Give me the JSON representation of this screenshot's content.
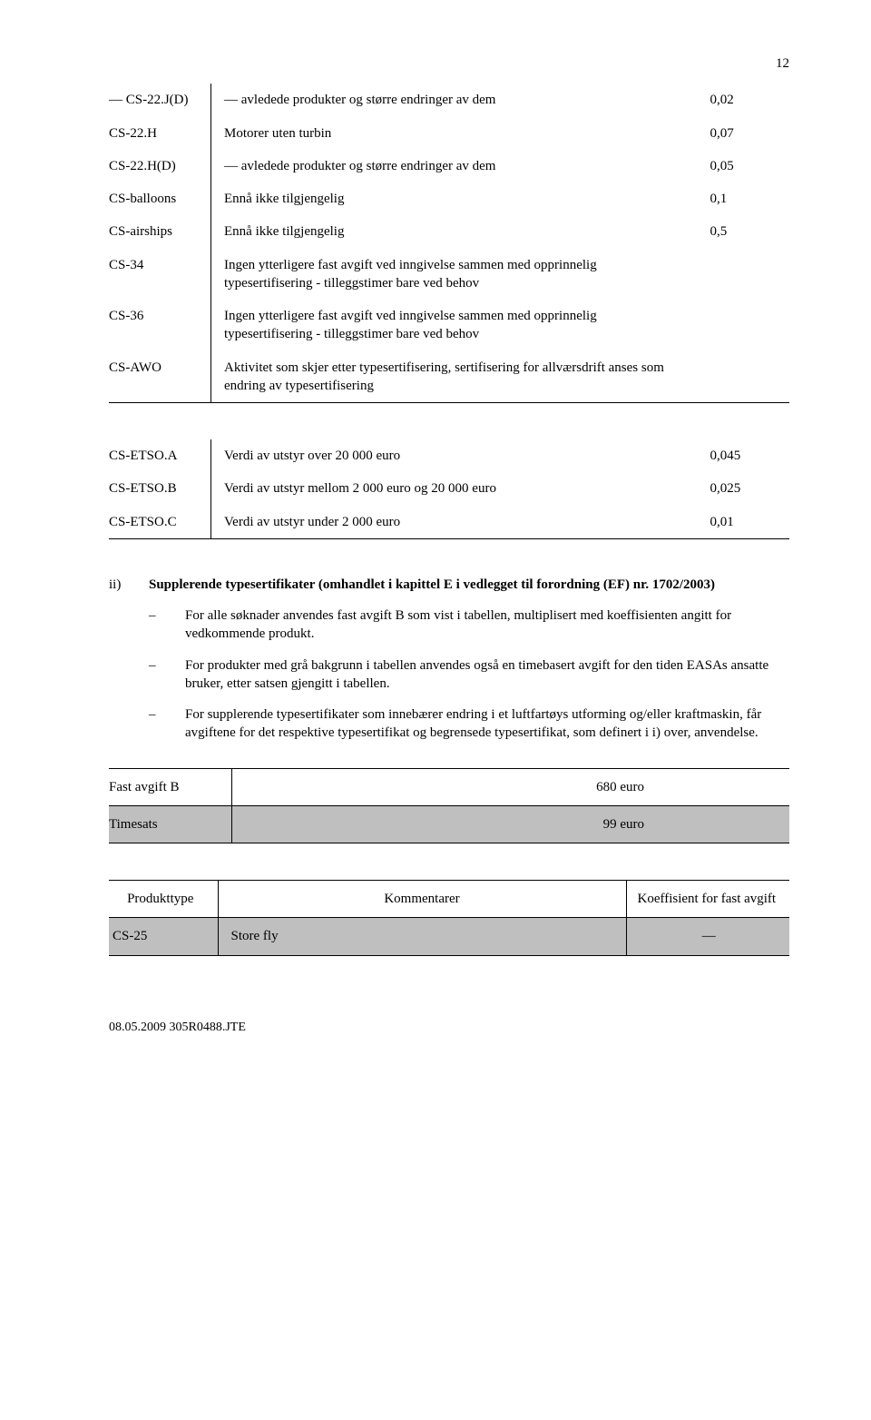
{
  "page_number": "12",
  "table1": {
    "rows": [
      {
        "c1": "— CS-22.J(D)",
        "c2": "— avledede produkter og større endringer av dem",
        "c3": "0,02"
      },
      {
        "c1": "CS-22.H",
        "c2": "Motorer uten turbin",
        "c3": "0,07"
      },
      {
        "c1": "CS-22.H(D)",
        "c2": "— avledede produkter og større endringer av dem",
        "c3": "0,05"
      },
      {
        "c1": "CS-balloons",
        "c2": "Ennå ikke tilgjengelig",
        "c3": "0,1"
      },
      {
        "c1": "CS-airships",
        "c2": "Ennå ikke tilgjengelig",
        "c3": "0,5"
      },
      {
        "c1": "CS-34",
        "c2": "Ingen ytterligere fast avgift ved inngivelse sammen med opprinnelig typesertifisering - tilleggstimer bare ved behov",
        "c3": ""
      },
      {
        "c1": "CS-36",
        "c2": "Ingen ytterligere fast avgift ved inngivelse sammen med opprinnelig typesertifisering - tilleggstimer bare ved behov",
        "c3": ""
      },
      {
        "c1": "CS-AWO",
        "c2": "Aktivitet som skjer etter typesertifisering, sertifisering for allværsdrift anses som endring av typesertifisering",
        "c3": ""
      }
    ]
  },
  "table2": {
    "rows": [
      {
        "c1": "CS-ETSO.A",
        "c2": "Verdi av utstyr over 20 000 euro",
        "c3": "0,045"
      },
      {
        "c1": "CS-ETSO.B",
        "c2": "Verdi av utstyr mellom 2 000 euro og 20 000 euro",
        "c3": "0,025"
      },
      {
        "c1": "CS-ETSO.C",
        "c2": "Verdi av utstyr under 2 000 euro",
        "c3": "0,01"
      }
    ]
  },
  "section": {
    "num": "ii)",
    "heading": "Supplerende typesertifikater (omhandlet i kapittel E i vedlegget til forordning (EF) nr. 1702/2003)",
    "bullets": [
      "For alle søknader anvendes fast avgift B som vist i tabellen, multiplisert med koeffisienten angitt for vedkommende produkt.",
      "For produkter med grå bakgrunn i tabellen anvendes også en timebasert avgift for den tiden EASAs ansatte bruker, etter satsen gjengitt i tabellen.",
      "For supplerende typesertifikater som innebærer endring i et luftfartøys utforming og/eller kraftmaskin, får avgiftene for det respektive typesertifikat og begrensede typesertifikat, som definert i i) over, anvendelse."
    ]
  },
  "fee_table": {
    "rows": [
      {
        "label": "Fast avgift B",
        "value": "680 euro",
        "grey": false
      },
      {
        "label": "Timesats",
        "value": "99 euro",
        "grey": true
      }
    ]
  },
  "product_table": {
    "header": {
      "c1": "Produkttype",
      "c2": "Kommentarer",
      "c3": "Koeffisient for fast avgift"
    },
    "rows": [
      {
        "c1": "CS-25",
        "c2": "Store fly",
        "c3": "—",
        "grey": true
      }
    ]
  },
  "footer": "08.05.2009   305R0488.JTE"
}
